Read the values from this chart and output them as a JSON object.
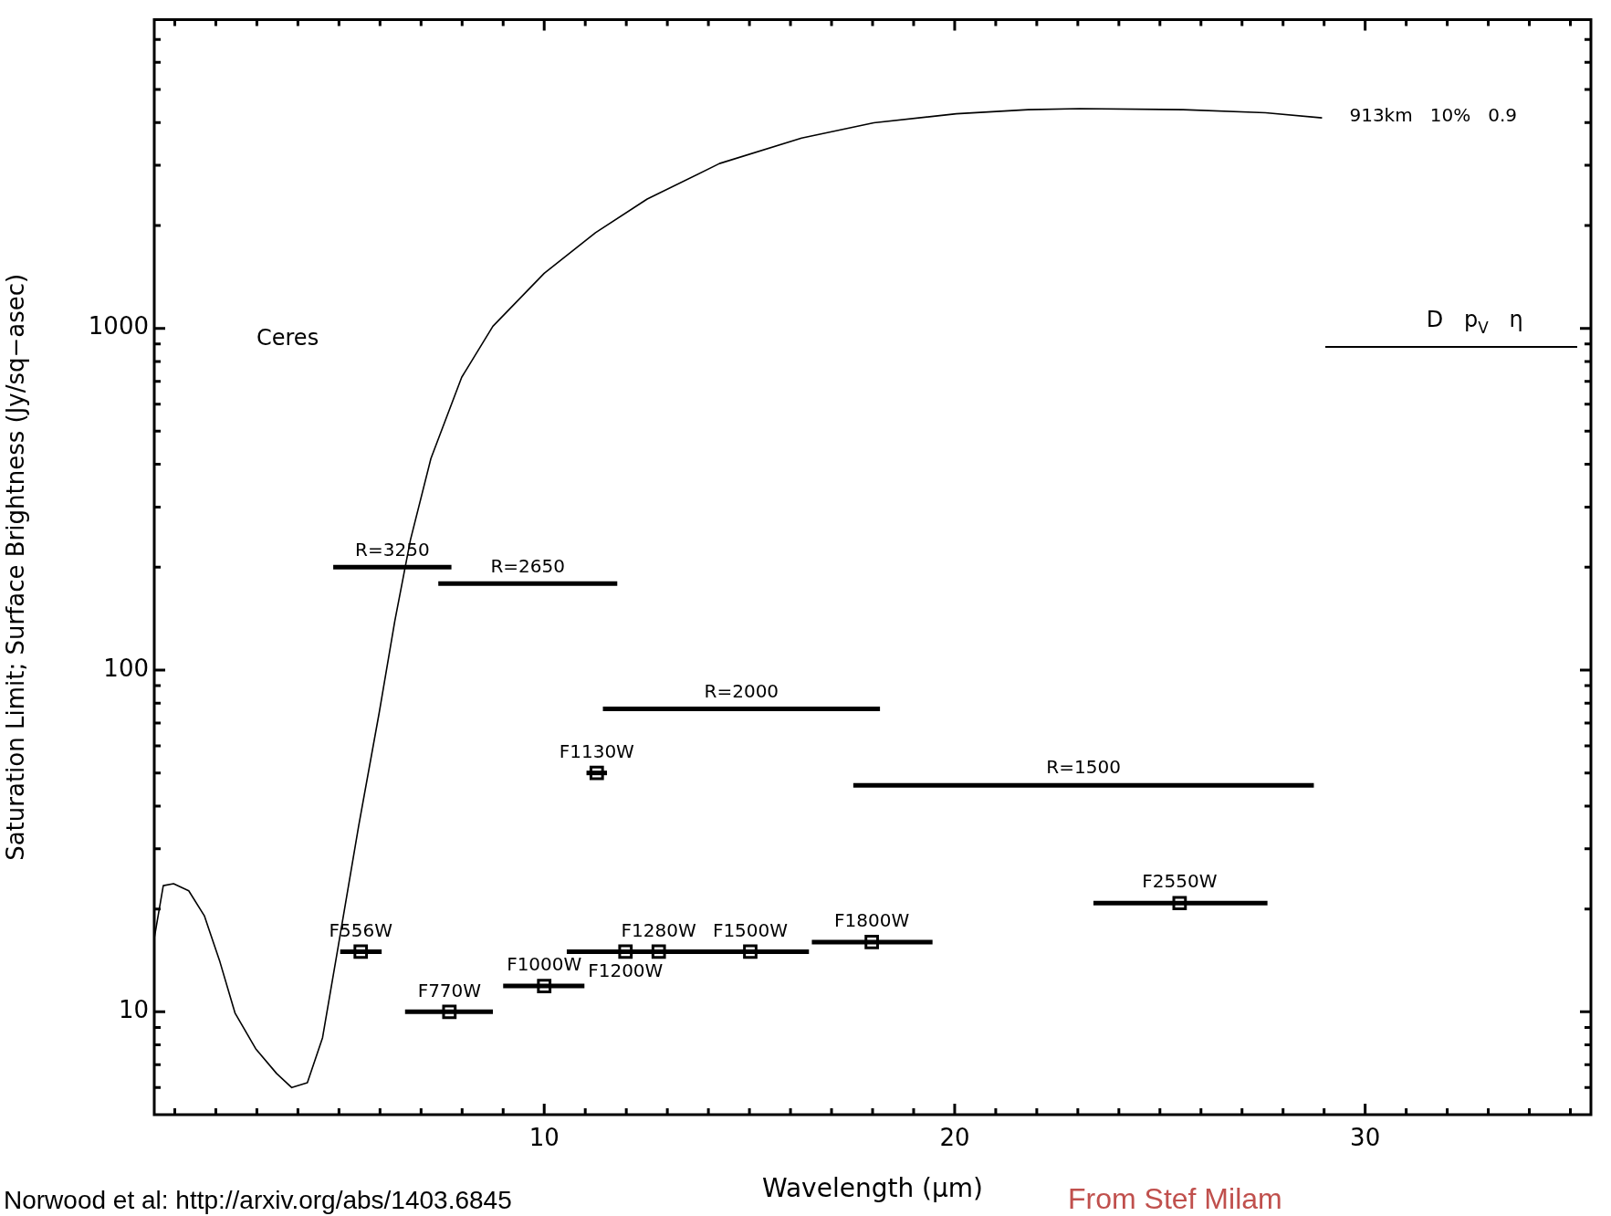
{
  "chart_data": {
    "type": "line",
    "xlabel": "Wavelength (μm)",
    "ylabel": "Saturation Limit; Surface Brightness (Jy/sq−asec)",
    "log": "y",
    "grid": false,
    "legend": "top right",
    "legend_title": "D   p$_{V}$   η",
    "xlim": [
      0.5,
      35.5
    ],
    "ylim": [
      5,
      8000
    ],
    "xticks": [
      {
        "value": 1,
        "label": null
      },
      {
        "value": 2,
        "label": null
      },
      {
        "value": 3,
        "label": null
      },
      {
        "value": 4,
        "label": null
      },
      {
        "value": 5,
        "label": null
      },
      {
        "value": 6,
        "label": null
      },
      {
        "value": 7,
        "label": null
      },
      {
        "value": 8,
        "label": null
      },
      {
        "value": 9,
        "label": null
      },
      10,
      {
        "value": 11,
        "label": null
      },
      {
        "value": 12,
        "label": null
      },
      {
        "value": 13,
        "label": null
      },
      {
        "value": 14,
        "label": null
      },
      {
        "value": 15,
        "label": null
      },
      {
        "value": 16,
        "label": null
      },
      {
        "value": 17,
        "label": null
      },
      {
        "value": 18,
        "label": null
      },
      {
        "value": 19,
        "label": null
      },
      20,
      {
        "value": 21,
        "label": null
      },
      {
        "value": 22,
        "label": null
      },
      {
        "value": 23,
        "label": null
      },
      {
        "value": 24,
        "label": null
      },
      {
        "value": 25,
        "label": null
      },
      {
        "value": 26,
        "label": null
      },
      {
        "value": 27,
        "label": null
      },
      {
        "value": 28,
        "label": null
      },
      {
        "value": 29,
        "label": null
      },
      30,
      {
        "value": 31,
        "label": null
      },
      {
        "value": 32,
        "label": null
      },
      {
        "value": 33,
        "label": null
      },
      {
        "value": 34,
        "label": null
      },
      {
        "value": 35,
        "label": null
      }
    ],
    "yticks": [
      {
        "value": 6,
        "label": null
      },
      {
        "value": 7,
        "label": null
      },
      {
        "value": 8,
        "label": null
      },
      {
        "value": 9,
        "label": null
      },
      10,
      {
        "value": 20,
        "label": null
      },
      {
        "value": 30,
        "label": null
      },
      {
        "value": 40,
        "label": null
      },
      {
        "value": 50,
        "label": null
      },
      {
        "value": 60,
        "label": null
      },
      {
        "value": 70,
        "label": null
      },
      {
        "value": 80,
        "label": null
      },
      {
        "value": 90,
        "label": null
      },
      100,
      {
        "value": 200,
        "label": null
      },
      {
        "value": 300,
        "label": null
      },
      {
        "value": 400,
        "label": null
      },
      {
        "value": 500,
        "label": null
      },
      {
        "value": 600,
        "label": null
      },
      {
        "value": 700,
        "label": null
      },
      {
        "value": 800,
        "label": null
      },
      {
        "value": 900,
        "label": null
      },
      1000,
      {
        "value": 2000,
        "label": null
      },
      {
        "value": 3000,
        "label": null
      },
      {
        "value": 4000,
        "label": null
      },
      {
        "value": 5000,
        "label": null
      },
      {
        "value": 6000,
        "label": null
      },
      {
        "value": 7000,
        "label": null
      },
      {
        "value": 8000,
        "label": null
      }
    ],
    "annotations": [
      "Ceres",
      "Norwood et al: http://arxiv.org/abs/1403.6845",
      "From Stef Milam"
    ],
    "series": [
      {
        "name": "913km   10%   0.9",
        "type": "line",
        "color": "#000000",
        "marker": "none",
        "x": [
          0.5,
          0.72,
          0.97,
          1.34,
          1.72,
          2.1,
          2.47,
          2.97,
          3.48,
          3.85,
          4.23,
          4.6,
          4.98,
          5.48,
          5.98,
          6.36,
          6.74,
          7.24,
          7.99,
          8.75,
          10,
          11.25,
          12.51,
          14.27,
          16.27,
          18.03,
          20.04,
          21.79,
          23.05,
          25.56,
          27.57,
          28.95
        ],
        "values": [
          16.4,
          23.4,
          23.7,
          22.6,
          19.1,
          14,
          9.9,
          7.8,
          6.6,
          6,
          6.2,
          8.4,
          15.5,
          35,
          75,
          139,
          240,
          416,
          719,
          1014,
          1449,
          1905,
          2390,
          3036,
          3604,
          3994,
          4246,
          4365,
          4395,
          4365,
          4276,
          4130
        ]
      },
      {
        "name": "R=3250",
        "type": "line",
        "color": "#000000",
        "marker": "none",
        "x": [
          4.86,
          7.74
        ],
        "values": [
          200,
          200
        ]
      },
      {
        "name": "R=2650",
        "type": "line",
        "color": "#000000",
        "marker": "none",
        "x": [
          7.42,
          11.78
        ],
        "values": [
          179,
          179
        ]
      },
      {
        "name": "R=2000",
        "type": "line",
        "color": "#000000",
        "marker": "none",
        "x": [
          11.43,
          18.18
        ],
        "values": [
          77,
          77
        ]
      },
      {
        "name": "R=1500",
        "type": "line",
        "color": "#000000",
        "marker": "none",
        "x": [
          17.53,
          28.75
        ],
        "values": [
          46,
          46
        ]
      },
      {
        "name": "F556W",
        "type": "scatter",
        "color": "#000000",
        "marker": "square",
        "x": [
          5.53
        ],
        "values": [
          15
        ],
        "xerrors": [
          [
            5.03,
            6.04
          ]
        ]
      },
      {
        "name": "F770W",
        "type": "scatter",
        "color": "#000000",
        "marker": "square",
        "x": [
          7.69
        ],
        "values": [
          10
        ],
        "xerrors": [
          [
            6.61,
            8.75
          ]
        ]
      },
      {
        "name": "F1000W",
        "type": "scatter",
        "color": "#000000",
        "marker": "square",
        "x": [
          10
        ],
        "values": [
          11.9
        ],
        "xerrors": [
          [
            9,
            10.98
          ]
        ]
      },
      {
        "name": "F1130W",
        "type": "scatter",
        "color": "#000000",
        "marker": "square",
        "x": [
          11.28
        ],
        "values": [
          50
        ],
        "xerrors": [
          [
            11.03,
            11.53
          ]
        ]
      },
      {
        "name": "F1200W",
        "type": "scatter",
        "color": "#000000",
        "marker": "square",
        "x": [
          11.98
        ],
        "values": [
          15
        ],
        "xerrors": [
          [
            10.55,
            13.4
          ]
        ]
      },
      {
        "name": "F1280W",
        "type": "scatter",
        "color": "#000000",
        "marker": "square",
        "x": [
          12.79
        ],
        "values": [
          15
        ],
        "xerrors": [
          [
            12,
            13.6
          ]
        ]
      },
      {
        "name": "F1500W",
        "type": "scatter",
        "color": "#000000",
        "marker": "square",
        "x": [
          15.02
        ],
        "values": [
          15
        ],
        "xerrors": [
          [
            13.5,
            16.45
          ]
        ]
      },
      {
        "name": "F1800W",
        "type": "scatter",
        "color": "#000000",
        "marker": "square",
        "x": [
          17.98
        ],
        "values": [
          16
        ],
        "xerrors": [
          [
            16.52,
            19.46
          ]
        ]
      },
      {
        "name": "F2550W",
        "type": "scatter",
        "color": "#000000",
        "marker": "square",
        "x": [
          25.48
        ],
        "values": [
          20.8
        ],
        "xerrors": [
          [
            23.38,
            27.62
          ]
        ]
      }
    ]
  }
}
